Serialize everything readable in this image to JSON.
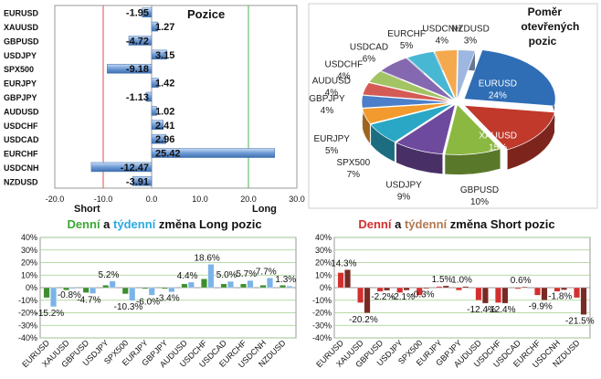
{
  "chart_data": [
    {
      "type": "bar",
      "orientation": "horizontal",
      "title": "Pozice",
      "categories": [
        "EURUSD",
        "XAUUSD",
        "GBPUSD",
        "USDJPY",
        "SPX500",
        "EURJPY",
        "GBPJPY",
        "AUDUSD",
        "USDCHF",
        "USDCAD",
        "EURCHF",
        "USDCNH",
        "NZDUSD"
      ],
      "values": [
        -1.95,
        1.27,
        -4.72,
        3.15,
        -9.18,
        1.42,
        -1.13,
        1.02,
        2.41,
        2.96,
        25.42,
        -12.47,
        -3.91
      ],
      "value_labels": [
        "-1.95",
        "1.27",
        "-4.72",
        "3.15",
        "-9.18",
        "1.42",
        "-1.13",
        "1.02",
        "2.41",
        "2.96",
        "25.42",
        "-12.47",
        "-3.91"
      ],
      "xlim": [
        -20,
        30
      ],
      "ticks": [
        "-20.0",
        "-10.0",
        "0.0",
        "10.0",
        "20.0",
        "30.0"
      ],
      "tick_values": [
        -20,
        -10,
        0,
        10,
        20,
        30
      ],
      "annotations": {
        "short": "Short",
        "long": "Long"
      },
      "reference_lines": [
        {
          "value": -10,
          "color": "#d9534f"
        },
        {
          "value": 20,
          "color": "#4caf50"
        }
      ],
      "bar_color": "#4a7fc1"
    },
    {
      "type": "pie",
      "title_lines": [
        "Poměr",
        "otevřených",
        "pozic"
      ],
      "slices": [
        {
          "name": "EURUSD",
          "value": 24,
          "label": "24%",
          "color": "#2f6db5"
        },
        {
          "name": "XAUUSD",
          "value": 15,
          "label": "15%",
          "color": "#c0392b"
        },
        {
          "name": "GBPUSD",
          "value": 10,
          "label": "10%",
          "color": "#8bb840"
        },
        {
          "name": "USDJPY",
          "value": 9,
          "label": "9%",
          "color": "#6e4a9e"
        },
        {
          "name": "SPX500",
          "value": 7,
          "label": "7%",
          "color": "#2aa7c4"
        },
        {
          "name": "EURJPY",
          "value": 5,
          "label": "5%",
          "color": "#f29a2e"
        },
        {
          "name": "GBPJPY",
          "value": 4,
          "label": "4%",
          "color": "#4b7fc9"
        },
        {
          "name": "AUDUSD",
          "value": 4,
          "label": "4%",
          "color": "#d45a55"
        },
        {
          "name": "USDCHF",
          "value": 4,
          "label": "4%",
          "color": "#a3c464"
        },
        {
          "name": "USDCAD",
          "value": 6,
          "label": "6%",
          "color": "#8569b0"
        },
        {
          "name": "EURCHF",
          "value": 5,
          "label": "5%",
          "color": "#48b7d4"
        },
        {
          "name": "USDCNH",
          "value": 4,
          "label": "4%",
          "color": "#f5a94f"
        },
        {
          "name": "NZDUSD",
          "value": 3,
          "label": "3%",
          "color": "#9db7e0"
        }
      ]
    },
    {
      "type": "bar",
      "title_parts": [
        {
          "text": "Denní",
          "color": "#3aa935"
        },
        {
          "text": " a ",
          "color": "#111111"
        },
        {
          "text": "týdenní",
          "color": "#2aa9e0"
        },
        {
          "text": " změna Long pozic",
          "color": "#111111"
        }
      ],
      "categories": [
        "EURUSD",
        "XAUUSD",
        "GBPUSD",
        "USDJPY",
        "SPX500",
        "EURJPY",
        "GBPJPY",
        "AUDUSD",
        "USDCHF",
        "USDCAD",
        "EURCHF",
        "USDCNH",
        "NZDUSD"
      ],
      "series": [
        {
          "name": "Denní",
          "color": "#3d8f2e",
          "values": [
            -8,
            -2,
            -4,
            2,
            -5,
            -1,
            -1,
            3,
            7,
            3,
            3,
            2,
            2
          ]
        },
        {
          "name": "Týdenní",
          "color": "#7cb3e8",
          "values": [
            -15.2,
            -0.8,
            -4.7,
            5.2,
            -10.3,
            -6.0,
            -3.4,
            4.4,
            18.6,
            5.0,
            5.7,
            7.7,
            1.3
          ]
        }
      ],
      "data_labels": [
        "-15.2%",
        "-0.8%",
        "-4.7%",
        "5.2%",
        "-10.3%",
        "-6.0%",
        "-3.4%",
        "4.4%",
        "18.6%",
        "5.0%",
        "5.7%",
        "7.7%",
        "1.3%"
      ],
      "ylim": [
        -40,
        40
      ],
      "ticks": [
        "40%",
        "30%",
        "20%",
        "10%",
        "0%",
        "-10%",
        "-20%",
        "-30%",
        "-40%"
      ],
      "tick_values": [
        40,
        30,
        20,
        10,
        0,
        -10,
        -20,
        -30,
        -40
      ]
    },
    {
      "type": "bar",
      "title_parts": [
        {
          "text": "Denní",
          "color": "#d32f2f"
        },
        {
          "text": " a ",
          "color": "#111111"
        },
        {
          "text": "týdenní",
          "color": "#b07a52"
        },
        {
          "text": " změna Short pozic",
          "color": "#111111"
        }
      ],
      "categories": [
        "EURUSD",
        "XAUUSD",
        "GBPUSD",
        "USDJPY",
        "SPX500",
        "EURJPY",
        "GBPJPY",
        "AUDUSD",
        "USDCHF",
        "USDCAD",
        "EURCHF",
        "USDCNH",
        "NZDUSD"
      ],
      "series": [
        {
          "name": "Denní",
          "color": "#d32f2f",
          "values": [
            12,
            -12,
            -3,
            -4,
            -6,
            1,
            -2,
            -10,
            -12,
            -1,
            -6,
            -3,
            -8
          ]
        },
        {
          "name": "Týdenní",
          "color": "#7a2a24",
          "values": [
            14.3,
            -20.2,
            -2.2,
            -2.1,
            -0.3,
            1.5,
            1.0,
            -12.4,
            -12.4,
            0.6,
            -9.9,
            -1.8,
            -21.5
          ]
        }
      ],
      "data_labels": [
        "14.3%",
        "-20.2%",
        "-2.2%",
        "-2.1%",
        "-0.3%",
        "1.5%",
        "1.0%",
        "-12.4%",
        "-12.4%",
        "0.6%",
        "-9.9%",
        "-1.8%",
        "-21.5%"
      ],
      "ylim": [
        -40,
        40
      ],
      "ticks": [
        "40%",
        "30%",
        "20%",
        "10%",
        "0%",
        "-10%",
        "-20%",
        "-30%",
        "-40%"
      ],
      "tick_values": [
        40,
        30,
        20,
        10,
        0,
        -10,
        -20,
        -30,
        -40
      ]
    }
  ]
}
